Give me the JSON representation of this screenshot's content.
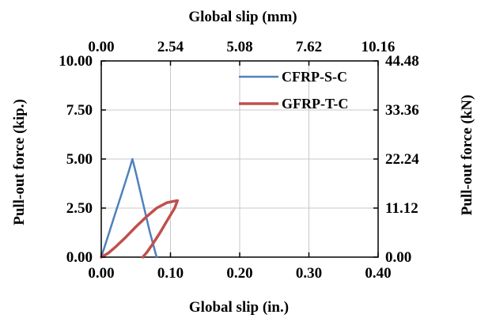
{
  "chart_data": {
    "type": "line",
    "xlabel_bottom": "Global  slip (in.)",
    "xlabel_top": "Global  slip (mm)",
    "ylabel_left": "Pull-out force (kip.)",
    "ylabel_right": "Pull-out force (kN)",
    "xlim": [
      0,
      0.4
    ],
    "ylim": [
      0,
      10.0
    ],
    "x_ticks_bottom": [
      "0.00",
      "0.10",
      "0.20",
      "0.30",
      "0.40"
    ],
    "x_ticks_top": [
      "0.00",
      "2.54",
      "5.08",
      "7.62",
      "10.16"
    ],
    "y_ticks_left": [
      "0.00",
      "2.50",
      "5.00",
      "7.50",
      "10.00"
    ],
    "y_ticks_right": [
      "0.00",
      "11.12",
      "22.24",
      "33.36",
      "44.48"
    ],
    "grid": true,
    "legend_position": "top-right",
    "series": [
      {
        "name": "CFRP-S-C",
        "color": "#4f81bd",
        "x": [
          0.0,
          0.01,
          0.02,
          0.03,
          0.04,
          0.045,
          0.05,
          0.06,
          0.07,
          0.08
        ],
        "y": [
          0.0,
          1.1,
          2.2,
          3.3,
          4.4,
          5.0,
          4.3,
          2.8,
          1.3,
          0.0
        ]
      },
      {
        "name": "GFRP-T-C",
        "color": "#c0504d",
        "x": [
          0.0,
          0.01,
          0.02,
          0.035,
          0.05,
          0.065,
          0.08,
          0.095,
          0.105,
          0.11,
          0.106,
          0.095,
          0.085,
          0.075,
          0.066,
          0.06
        ],
        "y": [
          0.0,
          0.2,
          0.5,
          1.0,
          1.55,
          2.05,
          2.5,
          2.78,
          2.85,
          2.88,
          2.5,
          1.85,
          1.25,
          0.7,
          0.25,
          0.0
        ]
      }
    ]
  }
}
